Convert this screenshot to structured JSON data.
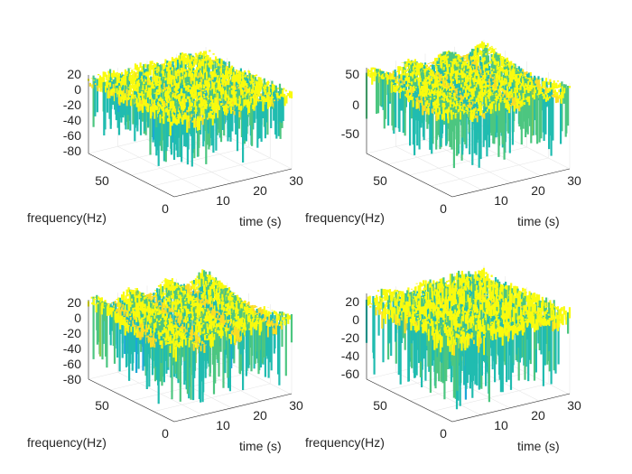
{
  "chart_data": [
    {
      "type": "surface",
      "title": "",
      "xlabel": "time (s)",
      "ylabel": "frequency(Hz)",
      "zlabel": "",
      "x_ticks": [
        "10",
        "20",
        "30"
      ],
      "y_ticks": [
        "0",
        "50"
      ],
      "z_ticks": [
        "20",
        "0",
        "-20",
        "-40",
        "-60",
        "-80"
      ],
      "xlim": [
        0,
        32
      ],
      "ylim": [
        0,
        70
      ],
      "zlim": [
        -90,
        30
      ],
      "surface_peak_db": 25,
      "surface_floor_db": -60,
      "pattern": "noisy"
    },
    {
      "type": "surface",
      "title": "",
      "xlabel": "time (s)",
      "ylabel": "frequency(Hz)",
      "zlabel": "",
      "x_ticks": [
        "10",
        "20",
        "30"
      ],
      "y_ticks": [
        "0",
        "50"
      ],
      "z_ticks": [
        "50",
        "0",
        "-50"
      ],
      "xlim": [
        0,
        32
      ],
      "ylim": [
        0,
        70
      ],
      "zlim": [
        -90,
        70
      ],
      "surface_peak_db": 55,
      "surface_floor_db": -60,
      "pattern": "diagonal-ridges"
    },
    {
      "type": "surface",
      "title": "",
      "xlabel": "time (s)",
      "ylabel": "frequency(Hz)",
      "zlabel": "",
      "x_ticks": [
        "10",
        "20",
        "30"
      ],
      "y_ticks": [
        "0",
        "50"
      ],
      "z_ticks": [
        "20",
        "0",
        "-20",
        "-40",
        "-60",
        "-80"
      ],
      "xlim": [
        0,
        32
      ],
      "ylim": [
        0,
        70
      ],
      "zlim": [
        -90,
        30
      ],
      "surface_peak_db": 25,
      "surface_floor_db": -75,
      "pattern": "diagonal-ridges"
    },
    {
      "type": "surface",
      "title": "",
      "xlabel": "time (s)",
      "ylabel": "frequency(Hz)",
      "zlabel": "",
      "x_ticks": [
        "10",
        "20",
        "30"
      ],
      "y_ticks": [
        "0",
        "50"
      ],
      "z_ticks": [
        "20",
        "0",
        "-20",
        "-40",
        "-60"
      ],
      "xlim": [
        0,
        32
      ],
      "ylim": [
        0,
        70
      ],
      "zlim": [
        -70,
        30
      ],
      "surface_peak_db": 25,
      "surface_floor_db": -65,
      "pattern": "noisy"
    }
  ]
}
